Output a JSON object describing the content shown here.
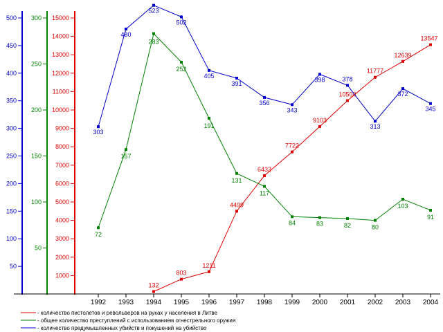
{
  "chart_data": {
    "type": "line",
    "title": "",
    "xlabel": "",
    "x": [
      "1992",
      "1993",
      "1994",
      "1995",
      "1996",
      "1997",
      "1998",
      "1999",
      "2000",
      "2001",
      "2002",
      "2003",
      "2004"
    ],
    "grid": false,
    "legend_placement": "bottom-left",
    "axes": [
      {
        "id": "blue",
        "color": "#0000cc",
        "ylim": [
          0,
          500
        ],
        "ticks": [
          50,
          100,
          150,
          200,
          250,
          300,
          350,
          400,
          450,
          500
        ]
      },
      {
        "id": "green",
        "color": "#008000",
        "ylim": [
          0,
          300
        ],
        "ticks": [
          50,
          100,
          150,
          200,
          250,
          300
        ]
      },
      {
        "id": "red",
        "color": "#dd0000",
        "ylim": [
          0,
          15000
        ],
        "ticks": [
          1000,
          2000,
          3000,
          4000,
          5000,
          6000,
          7000,
          8000,
          9000,
          10000,
          11000,
          12000,
          13000,
          14000,
          15000
        ]
      }
    ],
    "series": [
      {
        "name": "- количество пистолетов и револьверов на руках у населения в Литве",
        "axis": "red",
        "color": "#dd0000",
        "x": [
          "1994",
          "1995",
          "1996",
          "1997",
          "1998",
          "1999",
          "2000",
          "2001",
          "2002",
          "2003",
          "2004"
        ],
        "values": [
          132,
          803,
          1211,
          4499,
          6432,
          7722,
          9103,
          10508,
          11777,
          12639,
          13547
        ]
      },
      {
        "name": "- общее количество преступлений с использованием огнестрельного оружия",
        "axis": "green",
        "color": "#008000",
        "x": [
          "1992",
          "1993",
          "1994",
          "1995",
          "1996",
          "1997",
          "1998",
          "1999",
          "2000",
          "2001",
          "2002",
          "2003",
          "2004"
        ],
        "values": [
          72,
          157,
          283,
          252,
          191,
          131,
          117,
          84,
          83,
          82,
          80,
          103,
          91
        ]
      },
      {
        "name": "- количество предумышленных убийств и покушений на убийство",
        "axis": "blue",
        "color": "#0000cc",
        "x": [
          "1992",
          "1993",
          "1994",
          "1995",
          "1996",
          "1997",
          "1998",
          "1999",
          "2000",
          "2001",
          "2002",
          "2003",
          "2004"
        ],
        "values": [
          303,
          480,
          523,
          502,
          405,
          391,
          356,
          343,
          398,
          378,
          313,
          372,
          345
        ]
      }
    ]
  }
}
